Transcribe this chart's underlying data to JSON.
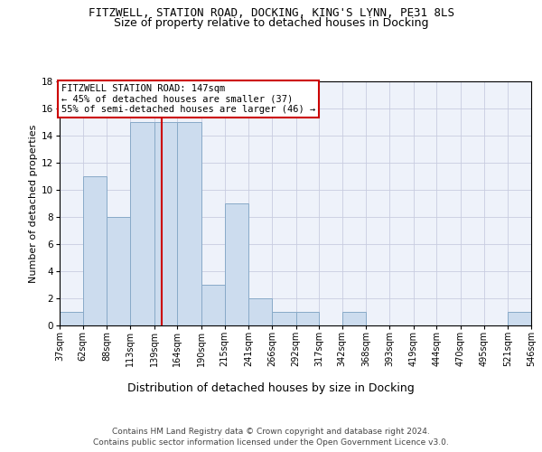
{
  "title1": "FITZWELL, STATION ROAD, DOCKING, KING'S LYNN, PE31 8LS",
  "title2": "Size of property relative to detached houses in Docking",
  "xlabel": "Distribution of detached houses by size in Docking",
  "ylabel": "Number of detached properties",
  "footnote1": "Contains HM Land Registry data © Crown copyright and database right 2024.",
  "footnote2": "Contains public sector information licensed under the Open Government Licence v3.0.",
  "annotation_line1": "FITZWELL STATION ROAD: 147sqm",
  "annotation_line2": "← 45% of detached houses are smaller (37)",
  "annotation_line3": "55% of semi-detached houses are larger (46) →",
  "bin_edges": [
    37,
    62,
    88,
    113,
    139,
    164,
    190,
    215,
    241,
    266,
    292,
    317,
    342,
    368,
    393,
    419,
    444,
    470,
    495,
    521,
    546
  ],
  "bin_counts": [
    1,
    11,
    8,
    15,
    15,
    15,
    3,
    9,
    2,
    1,
    1,
    0,
    1,
    0,
    0,
    0,
    0,
    0,
    0,
    1
  ],
  "property_size": 147,
  "bar_color": "#ccdcee",
  "bar_edge_color": "#88aac8",
  "vline_color": "#cc0000",
  "annotation_box_color": "#cc0000",
  "background_color": "#eef2fa",
  "grid_color": "#c8cce0",
  "ylim": [
    0,
    18
  ],
  "yticks": [
    0,
    2,
    4,
    6,
    8,
    10,
    12,
    14,
    16,
    18
  ],
  "title1_fontsize": 9,
  "title2_fontsize": 9,
  "ylabel_fontsize": 8,
  "xlabel_fontsize": 9,
  "tick_fontsize": 7,
  "annot_fontsize": 7.5,
  "footnote_fontsize": 6.5
}
